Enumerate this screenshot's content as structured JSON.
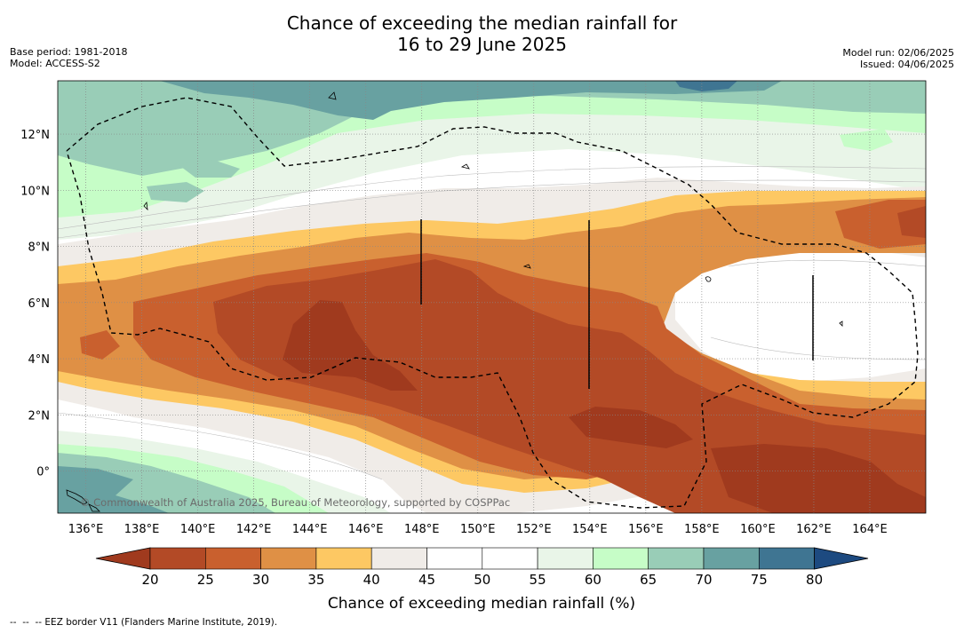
{
  "header": {
    "title_line1": "Chance of exceeding the median rainfall for",
    "title_line2": "16 to 29 June 2025",
    "base_period": "Base period: 1981-2018",
    "model": "Model: ACCESS-S2",
    "model_run": "Model run: 02/06/2025",
    "issued": "Issued: 04/06/2025"
  },
  "map": {
    "credit": "© Commonwealth of Australia 2025, Bureau of Meteorology, supported by COSPPac",
    "lon_ticks": [
      "136°E",
      "138°E",
      "140°E",
      "142°E",
      "144°E",
      "146°E",
      "148°E",
      "150°E",
      "152°E",
      "154°E",
      "156°E",
      "158°E",
      "160°E",
      "162°E",
      "164°E"
    ],
    "lat_ticks": [
      "12°N",
      "10°N",
      "8°N",
      "6°N",
      "4°N",
      "2°N",
      "0°"
    ],
    "lon_range": [
      135,
      166
    ],
    "lat_range": [
      -1.5,
      13.9
    ],
    "eez_line_style": "dashed black"
  },
  "colorbar": {
    "ticks": [
      "20",
      "25",
      "30",
      "35",
      "40",
      "45",
      "50",
      "55",
      "60",
      "65",
      "70",
      "75",
      "80"
    ],
    "colors": [
      "#a03a1e",
      "#b34a26",
      "#c9602e",
      "#df9045",
      "#fdc863",
      "#f0ece8",
      "#ffffff",
      "#ffffff",
      "#e9f5e8",
      "#c6fdc7",
      "#99cdb7",
      "#68a1a1",
      "#3f7592",
      "#1d4a80"
    ],
    "title": "Chance of exceeding median rainfall (%)"
  },
  "footnote": "--  --  -- EEZ border V11 (Flanders Marine Institute, 2019)."
}
